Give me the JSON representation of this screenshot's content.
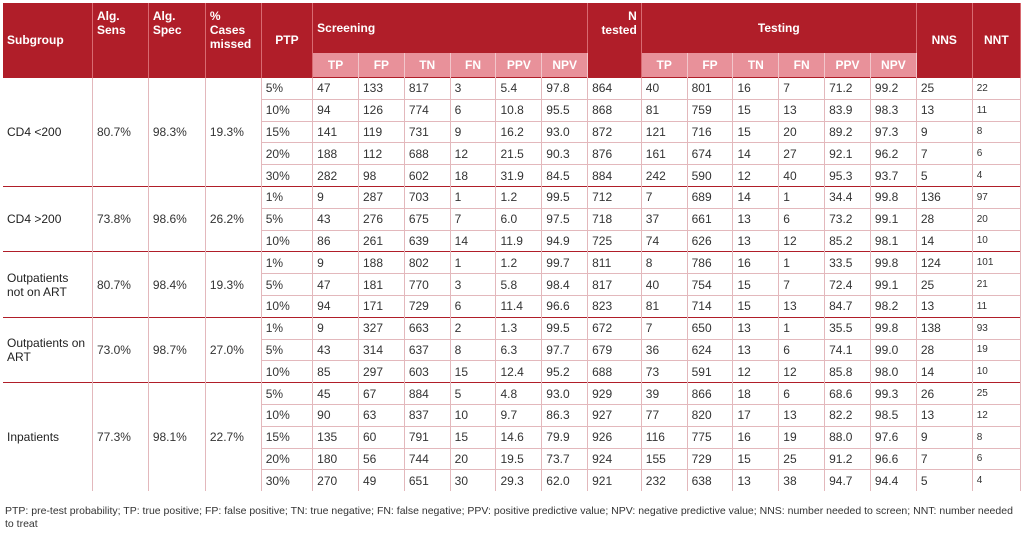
{
  "headers": {
    "subgroup": "Subgroup",
    "alg_sens_1": "Alg.",
    "alg_sens_2": "Sens",
    "alg_spec_1": "Alg.",
    "alg_spec_2": "Spec",
    "missed_1": "%",
    "missed_2": "Cases",
    "missed_3": "missed",
    "ptp": "PTP",
    "screening": "Screening",
    "n_tested_1": "N",
    "n_tested_2": "tested",
    "testing": "Testing",
    "nns": "NNS",
    "nnt": "NNT",
    "screening_cols": [
      "TP",
      "FP",
      "TN",
      "FN",
      "PPV",
      "NPV"
    ],
    "testing_cols": [
      "TP",
      "FP",
      "TN",
      "FN",
      "PPV",
      "NPV"
    ]
  },
  "groups": [
    {
      "subgroup": "CD4 <200",
      "sens": "80.7%",
      "spec": "98.3%",
      "missed": "19.3%",
      "rows": [
        {
          "ptp": "5%",
          "s": [
            "47",
            "133",
            "817",
            "3",
            "5.4",
            "97.8"
          ],
          "n": "864",
          "t": [
            "40",
            "801",
            "16",
            "7",
            "71.2",
            "99.2"
          ],
          "nns": "25",
          "nnt": "22"
        },
        {
          "ptp": "10%",
          "s": [
            "94",
            "126",
            "774",
            "6",
            "10.8",
            "95.5"
          ],
          "n": "868",
          "t": [
            "81",
            "759",
            "15",
            "13",
            "83.9",
            "98.3"
          ],
          "nns": "13",
          "nnt": "11"
        },
        {
          "ptp": "15%",
          "s": [
            "141",
            "119",
            "731",
            "9",
            "16.2",
            "93.0"
          ],
          "n": "872",
          "t": [
            "121",
            "716",
            "15",
            "20",
            "89.2",
            "97.3"
          ],
          "nns": "9",
          "nnt": "8"
        },
        {
          "ptp": "20%",
          "s": [
            "188",
            "112",
            "688",
            "12",
            "21.5",
            "90.3"
          ],
          "n": "876",
          "t": [
            "161",
            "674",
            "14",
            "27",
            "92.1",
            "96.2"
          ],
          "nns": "7",
          "nnt": "6"
        },
        {
          "ptp": "30%",
          "s": [
            "282",
            "98",
            "602",
            "18",
            "31.9",
            "84.5"
          ],
          "n": "884",
          "t": [
            "242",
            "590",
            "12",
            "40",
            "95.3",
            "93.7"
          ],
          "nns": "5",
          "nnt": "4"
        }
      ]
    },
    {
      "subgroup": "CD4 >200",
      "sens": "73.8%",
      "spec": "98.6%",
      "missed": "26.2%",
      "rows": [
        {
          "ptp": "1%",
          "s": [
            "9",
            "287",
            "703",
            "1",
            "1.2",
            "99.5"
          ],
          "n": "712",
          "t": [
            "7",
            "689",
            "14",
            "1",
            "34.4",
            "99.8"
          ],
          "nns": "136",
          "nnt": "97"
        },
        {
          "ptp": "5%",
          "s": [
            "43",
            "276",
            "675",
            "7",
            "6.0",
            "97.5"
          ],
          "n": "718",
          "t": [
            "37",
            "661",
            "13",
            "6",
            "73.2",
            "99.1"
          ],
          "nns": "28",
          "nnt": "20"
        },
        {
          "ptp": "10%",
          "s": [
            "86",
            "261",
            "639",
            "14",
            "11.9",
            "94.9"
          ],
          "n": "725",
          "t": [
            "74",
            "626",
            "13",
            "12",
            "85.2",
            "98.1"
          ],
          "nns": "14",
          "nnt": "10"
        }
      ]
    },
    {
      "subgroup": "Outpatients not on ART",
      "sens": "80.7%",
      "spec": "98.4%",
      "missed": "19.3%",
      "rows": [
        {
          "ptp": "1%",
          "s": [
            "9",
            "188",
            "802",
            "1",
            "1.2",
            "99.7"
          ],
          "n": "811",
          "t": [
            "8",
            "786",
            "16",
            "1",
            "33.5",
            "99.8"
          ],
          "nns": "124",
          "nnt": "101"
        },
        {
          "ptp": "5%",
          "s": [
            "47",
            "181",
            "770",
            "3",
            "5.8",
            "98.4"
          ],
          "n": "817",
          "t": [
            "40",
            "754",
            "15",
            "7",
            "72.4",
            "99.1"
          ],
          "nns": "25",
          "nnt": "21"
        },
        {
          "ptp": "10%",
          "s": [
            "94",
            "171",
            "729",
            "6",
            "11.4",
            "96.6"
          ],
          "n": "823",
          "t": [
            "81",
            "714",
            "15",
            "13",
            "84.7",
            "98.2"
          ],
          "nns": "13",
          "nnt": "11"
        }
      ]
    },
    {
      "subgroup": "Outpatients on ART",
      "sens": "73.0%",
      "spec": "98.7%",
      "missed": "27.0%",
      "rows": [
        {
          "ptp": "1%",
          "s": [
            "9",
            "327",
            "663",
            "2",
            "1.3",
            "99.5"
          ],
          "n": "672",
          "t": [
            "7",
            "650",
            "13",
            "1",
            "35.5",
            "99.8"
          ],
          "nns": "138",
          "nnt": "93"
        },
        {
          "ptp": "5%",
          "s": [
            "43",
            "314",
            "637",
            "8",
            "6.3",
            "97.7"
          ],
          "n": "679",
          "t": [
            "36",
            "624",
            "13",
            "6",
            "74.1",
            "99.0"
          ],
          "nns": "28",
          "nnt": "19"
        },
        {
          "ptp": "10%",
          "s": [
            "85",
            "297",
            "603",
            "15",
            "12.4",
            "95.2"
          ],
          "n": "688",
          "t": [
            "73",
            "591",
            "12",
            "12",
            "85.8",
            "98.0"
          ],
          "nns": "14",
          "nnt": "10"
        }
      ]
    },
    {
      "subgroup": "Inpatients",
      "sens": "77.3%",
      "spec": "98.1%",
      "missed": "22.7%",
      "rows": [
        {
          "ptp": "5%",
          "s": [
            "45",
            "67",
            "884",
            "5",
            "4.8",
            "93.0"
          ],
          "n": "929",
          "t": [
            "39",
            "866",
            "18",
            "6",
            "68.6",
            "99.3"
          ],
          "nns": "26",
          "nnt": "25"
        },
        {
          "ptp": "10%",
          "s": [
            "90",
            "63",
            "837",
            "10",
            "9.7",
            "86.3"
          ],
          "n": "927",
          "t": [
            "77",
            "820",
            "17",
            "13",
            "82.2",
            "98.5"
          ],
          "nns": "13",
          "nnt": "12"
        },
        {
          "ptp": "15%",
          "s": [
            "135",
            "60",
            "791",
            "15",
            "14.6",
            "79.9"
          ],
          "n": "926",
          "t": [
            "116",
            "775",
            "16",
            "19",
            "88.0",
            "97.6"
          ],
          "nns": "9",
          "nnt": "8"
        },
        {
          "ptp": "20%",
          "s": [
            "180",
            "56",
            "744",
            "20",
            "19.5",
            "73.7"
          ],
          "n": "924",
          "t": [
            "155",
            "729",
            "15",
            "25",
            "91.2",
            "96.6"
          ],
          "nns": "7",
          "nnt": "6"
        },
        {
          "ptp": "30%",
          "s": [
            "270",
            "49",
            "651",
            "30",
            "29.3",
            "62.0"
          ],
          "n": "921",
          "t": [
            "232",
            "638",
            "13",
            "38",
            "94.7",
            "94.4"
          ],
          "nns": "5",
          "nnt": "4"
        }
      ]
    }
  ],
  "footnote": "PTP: pre-test probability; TP: true positive; FP: false positive; TN: true negative; FN: false negative; PPV: positive predictive value; NPV: negative predictive value; NNS: number needed to screen; NNT: number needed to treat"
}
